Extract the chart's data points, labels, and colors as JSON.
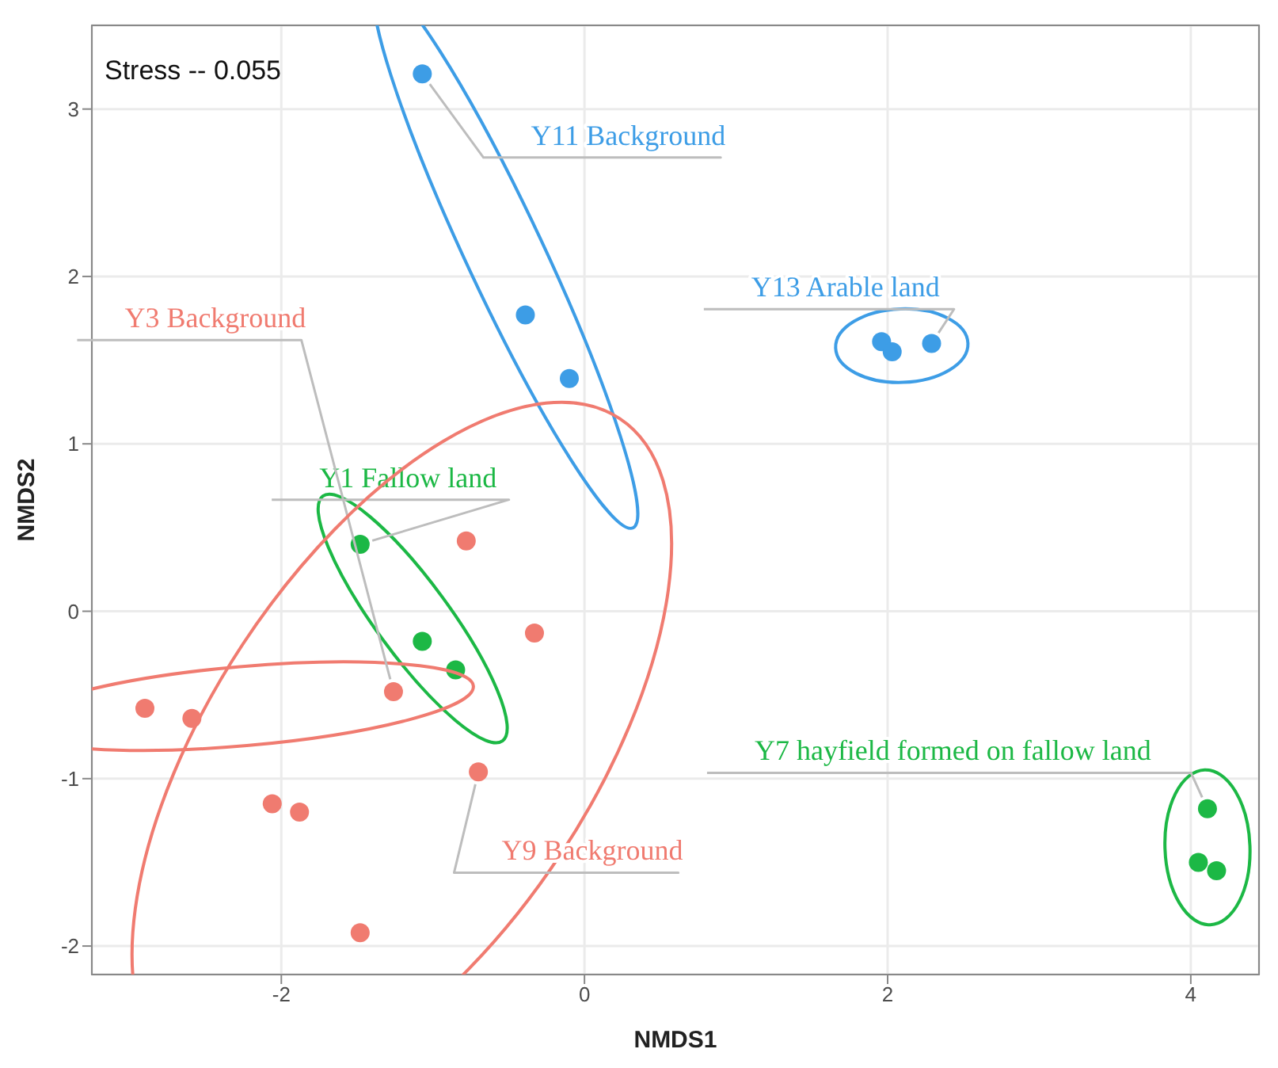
{
  "chart_data": {
    "type": "scatter",
    "xlabel": "NMDS1",
    "ylabel": "NMDS2",
    "annotations": [
      "Stress -- 0.055"
    ],
    "xlim": [
      -3.25,
      4.45
    ],
    "ylim": [
      -2.17,
      3.5
    ],
    "xticks": [
      -2,
      0,
      2,
      4
    ],
    "yticks": [
      -2,
      -1,
      0,
      1,
      2,
      3
    ],
    "grid": true,
    "legend": false,
    "marker": "circle",
    "series": [
      {
        "name": "Y11 Background",
        "color": "#3d9de6",
        "x": [
          -1.07,
          -0.39,
          -0.1
        ],
        "values": [
          3.21,
          1.77,
          1.39
        ]
      },
      {
        "name": "Y13 Arable land",
        "color": "#3d9de6",
        "x": [
          1.96,
          2.03,
          2.29
        ],
        "values": [
          1.61,
          1.55,
          1.6
        ]
      },
      {
        "name": "Y1 Fallow land",
        "color": "#1cb845",
        "x": [
          -1.48,
          -1.07,
          -0.85
        ],
        "values": [
          0.4,
          -0.18,
          -0.35
        ]
      },
      {
        "name": "Y7 hayfield formed on fallow land",
        "color": "#1cb845",
        "x": [
          4.11,
          4.05,
          4.17
        ],
        "values": [
          -1.18,
          -1.5,
          -1.55
        ]
      },
      {
        "name": "Y3 Background",
        "color": "#f07b70",
        "x": [
          -2.9,
          -2.59,
          -1.26
        ],
        "values": [
          -0.58,
          -0.64,
          -0.48
        ]
      },
      {
        "name": "Y9 Background",
        "color": "#f07b70",
        "x": [
          -0.78,
          -0.33,
          -0.7,
          -2.06,
          -1.88,
          -1.48
        ],
        "values": [
          0.42,
          -0.13,
          -0.96,
          -1.15,
          -1.2,
          -1.92
        ]
      }
    ]
  }
}
